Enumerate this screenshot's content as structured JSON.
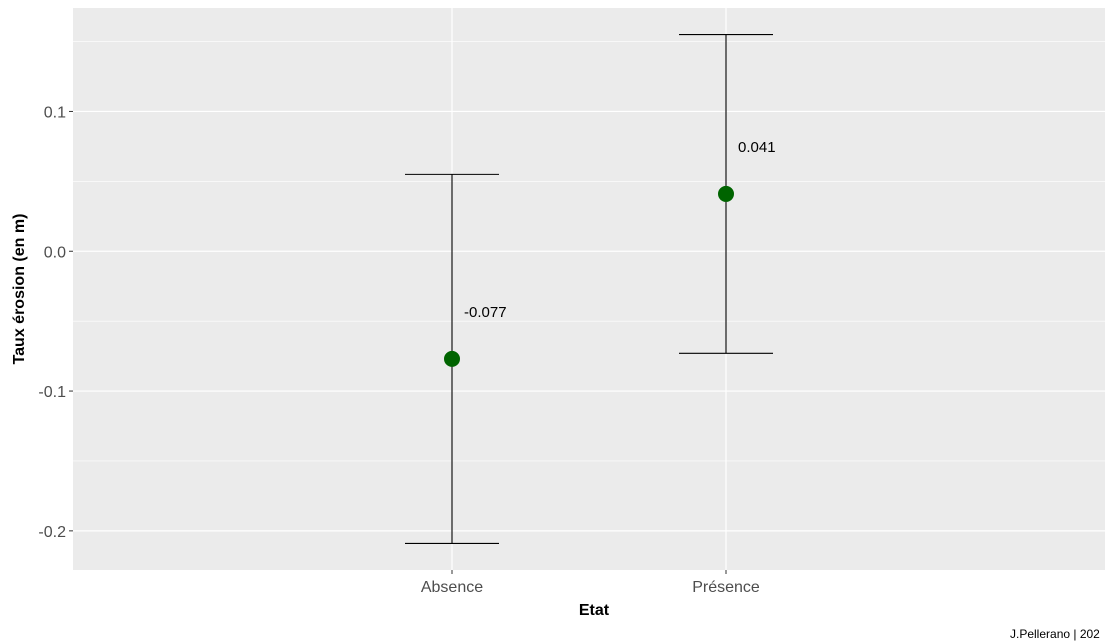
{
  "chart_data": {
    "type": "scatter",
    "title": "",
    "xlabel": "Etat",
    "ylabel": "Taux érosion (en m)",
    "categories": [
      "Absence",
      "Présence"
    ],
    "points": [
      {
        "category": "Absence",
        "mean": -0.077,
        "lower": -0.209,
        "upper": 0.055,
        "label": "-0.077"
      },
      {
        "category": "Présence",
        "mean": 0.041,
        "lower": -0.073,
        "upper": 0.155,
        "label": "0.041"
      }
    ],
    "ylim": [
      -0.228,
      0.174
    ],
    "yticks": [
      0.1,
      0.0,
      -0.1,
      -0.2
    ],
    "ytick_labels": [
      "0.1",
      "0.0",
      "-0.1",
      "-0.2"
    ],
    "grid": true,
    "caption": "J.Pellerano | 202",
    "colors": {
      "panel_background": "#ebebeb",
      "gridline": "#ffffff",
      "point": "#006400",
      "errorbar": "#000000",
      "tick_label": "#4d4d4d"
    }
  }
}
